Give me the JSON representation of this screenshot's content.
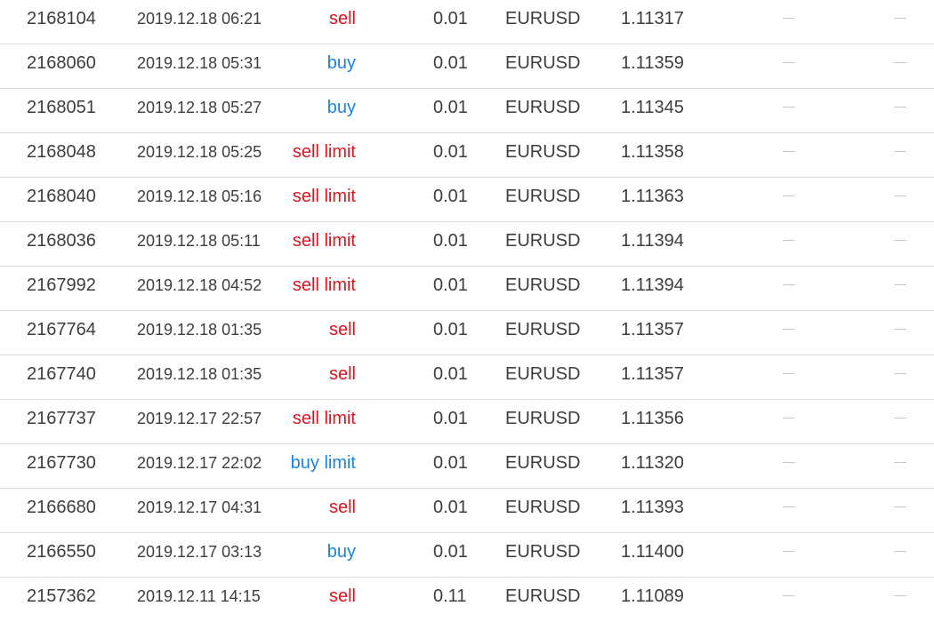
{
  "colors": {
    "sell": "#e0141e",
    "buy": "#1a82e0",
    "text": "#3d3d3d",
    "divider": "#dcdcdc",
    "dash": "#c8c8c8"
  },
  "orders": [
    {
      "ticket": "2168104",
      "time": "2019.12.18 06:21",
      "type": "sell",
      "volume": "0.01",
      "symbol": "EURUSD",
      "price": "1.11317",
      "sl": "—",
      "tp": "—"
    },
    {
      "ticket": "2168060",
      "time": "2019.12.18 05:31",
      "type": "buy",
      "volume": "0.01",
      "symbol": "EURUSD",
      "price": "1.11359",
      "sl": "—",
      "tp": "—"
    },
    {
      "ticket": "2168051",
      "time": "2019.12.18 05:27",
      "type": "buy",
      "volume": "0.01",
      "symbol": "EURUSD",
      "price": "1.11345",
      "sl": "—",
      "tp": "—"
    },
    {
      "ticket": "2168048",
      "time": "2019.12.18 05:25",
      "type": "sell limit",
      "volume": "0.01",
      "symbol": "EURUSD",
      "price": "1.11358",
      "sl": "—",
      "tp": "—"
    },
    {
      "ticket": "2168040",
      "time": "2019.12.18 05:16",
      "type": "sell limit",
      "volume": "0.01",
      "symbol": "EURUSD",
      "price": "1.11363",
      "sl": "—",
      "tp": "—"
    },
    {
      "ticket": "2168036",
      "time": "2019.12.18 05:11",
      "type": "sell limit",
      "volume": "0.01",
      "symbol": "EURUSD",
      "price": "1.11394",
      "sl": "—",
      "tp": "—"
    },
    {
      "ticket": "2167992",
      "time": "2019.12.18 04:52",
      "type": "sell limit",
      "volume": "0.01",
      "symbol": "EURUSD",
      "price": "1.11394",
      "sl": "—",
      "tp": "—"
    },
    {
      "ticket": "2167764",
      "time": "2019.12.18 01:35",
      "type": "sell",
      "volume": "0.01",
      "symbol": "EURUSD",
      "price": "1.11357",
      "sl": "—",
      "tp": "—"
    },
    {
      "ticket": "2167740",
      "time": "2019.12.18 01:35",
      "type": "sell",
      "volume": "0.01",
      "symbol": "EURUSD",
      "price": "1.11357",
      "sl": "—",
      "tp": "—"
    },
    {
      "ticket": "2167737",
      "time": "2019.12.17 22:57",
      "type": "sell limit",
      "volume": "0.01",
      "symbol": "EURUSD",
      "price": "1.11356",
      "sl": "—",
      "tp": "—"
    },
    {
      "ticket": "2167730",
      "time": "2019.12.17 22:02",
      "type": "buy limit",
      "volume": "0.01",
      "symbol": "EURUSD",
      "price": "1.11320",
      "sl": "—",
      "tp": "—"
    },
    {
      "ticket": "2166680",
      "time": "2019.12.17 04:31",
      "type": "sell",
      "volume": "0.01",
      "symbol": "EURUSD",
      "price": "1.11393",
      "sl": "—",
      "tp": "—"
    },
    {
      "ticket": "2166550",
      "time": "2019.12.17 03:13",
      "type": "buy",
      "volume": "0.01",
      "symbol": "EURUSD",
      "price": "1.11400",
      "sl": "—",
      "tp": "—"
    },
    {
      "ticket": "2157362",
      "time": "2019.12.11 14:15",
      "type": "sell",
      "volume": "0.11",
      "symbol": "EURUSD",
      "price": "1.11089",
      "sl": "—",
      "tp": "—"
    }
  ]
}
